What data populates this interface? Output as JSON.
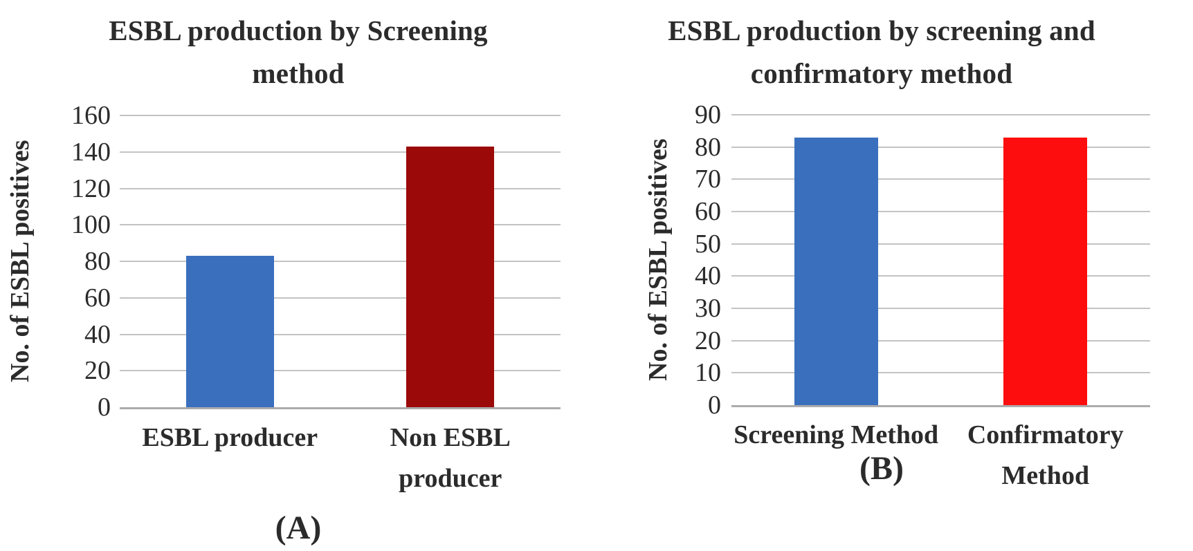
{
  "figure": {
    "background": "#FFFFFF",
    "text_color": "#2B2B2B",
    "gridline_color": "#C3C3C3",
    "baseline_color": "#ABABAB"
  },
  "chart_data": [
    {
      "type": "bar",
      "title": "ESBL production by Screening method",
      "title_lines": [
        "ESBL production by Screening",
        "method"
      ],
      "xlabel": "",
      "ylabel": "No. of ESBL positives",
      "categories": [
        "ESBL producer",
        "Non ESBL producer"
      ],
      "category_lines": [
        [
          "ESBL producer"
        ],
        [
          "Non ESBL",
          "producer"
        ]
      ],
      "values": [
        83,
        143
      ],
      "bar_colors": [
        "#3A6FBD",
        "#9B0909"
      ],
      "ylim": [
        0,
        160
      ],
      "yticks": [
        0,
        20,
        40,
        60,
        80,
        100,
        120,
        140,
        160
      ],
      "grid": true,
      "legend_position": "none",
      "panel_label": "(A)"
    },
    {
      "type": "bar",
      "title": "ESBL production by screening and confirmatory method",
      "title_lines": [
        "ESBL production by screening and",
        "confirmatory method"
      ],
      "xlabel": "",
      "ylabel": "No. of ESBL positives",
      "categories": [
        "Screening Method",
        "Confirmatory Method"
      ],
      "category_lines": [
        [
          "Screening Method"
        ],
        [
          "Confirmatory",
          "Method"
        ]
      ],
      "values": [
        83,
        83
      ],
      "bar_colors": [
        "#3A6FBD",
        "#FD0D0D"
      ],
      "ylim": [
        0,
        90
      ],
      "yticks": [
        0,
        10,
        20,
        30,
        40,
        50,
        60,
        70,
        80,
        90
      ],
      "grid": true,
      "legend_position": "none",
      "panel_label": "(B)"
    }
  ]
}
